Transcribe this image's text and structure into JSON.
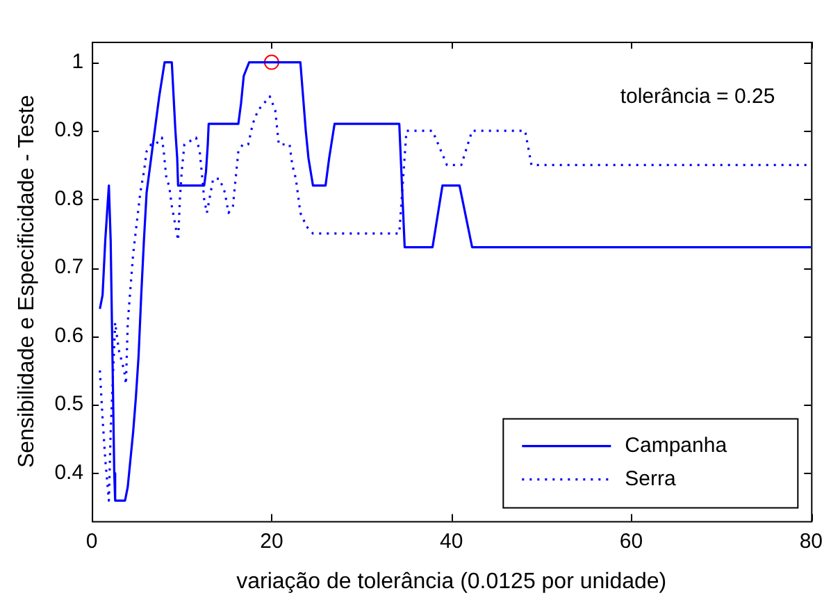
{
  "chart_data": {
    "type": "line",
    "xlabel": "variação de tolerância (0.0125 por unidade)",
    "ylabel": "Sensibilidade e Especificidade - Teste",
    "xlim": [
      0,
      80
    ],
    "xticks": [
      0,
      20,
      40,
      60,
      80
    ],
    "ylim": [
      0.33,
      1.03
    ],
    "yticks": [
      0.4,
      0.5,
      0.6,
      0.7,
      0.8,
      0.9,
      1
    ],
    "grid": false,
    "legend": "bottom right",
    "marker": "none",
    "annotations": [
      "tolerância = 0.25"
    ],
    "series": [
      {
        "name": "Campanha",
        "color": "#0000ff",
        "line_style": "solid",
        "x": [
          0.9,
          1.2,
          1.5,
          1.9,
          2.1,
          2.3,
          2.5,
          2.6,
          3.7,
          4.0,
          4.3,
          4.6,
          4.9,
          5.2,
          5.5,
          5.8,
          6.1,
          6.3,
          6.6,
          7.0,
          7.5,
          8.1,
          8.9,
          9.1,
          9.3,
          9.5,
          9.6,
          12.5,
          12.7,
          12.9,
          13.0,
          16.3,
          16.6,
          16.9,
          17.5,
          23.2,
          23.5,
          23.8,
          24.1,
          24.6,
          26.0,
          26.4,
          27.0,
          34.2,
          34.8,
          37.9,
          39.0,
          40.9,
          42.3,
          80
        ],
        "values": [
          0.64,
          0.66,
          0.74,
          0.82,
          0.74,
          0.57,
          0.4,
          0.36,
          0.36,
          0.38,
          0.42,
          0.46,
          0.51,
          0.57,
          0.66,
          0.74,
          0.81,
          0.83,
          0.86,
          0.9,
          0.95,
          1,
          1,
          0.95,
          0.9,
          0.86,
          0.82,
          0.82,
          0.84,
          0.88,
          0.91,
          0.91,
          0.94,
          0.98,
          1,
          1,
          0.95,
          0.9,
          0.86,
          0.82,
          0.82,
          0.86,
          0.91,
          0.91,
          0.73,
          0.73,
          0.82,
          0.82,
          0.73,
          0.73
        ]
      },
      {
        "name": "Serra",
        "color": "#0000ff",
        "line_style": "dotted",
        "x": [
          0.9,
          1.2,
          1.5,
          1.9,
          2.1,
          2.6,
          3.0,
          3.6,
          3.8,
          4.0,
          4.3,
          4.6,
          5.4,
          5.8,
          6.1,
          6.6,
          7.1,
          7.8,
          8.0,
          8.3,
          8.6,
          8.9,
          9.6,
          9.8,
          10.0,
          10.3,
          11.6,
          12.0,
          12.3,
          12.5,
          12.8,
          13.5,
          14.2,
          14.8,
          15.2,
          15.7,
          16.0,
          16.3,
          16.8,
          17.4,
          17.9,
          18.5,
          19.8,
          20.4,
          20.8,
          22.0,
          22.3,
          22.7,
          23.2,
          23.9,
          24.6,
          25.8,
          34.2,
          35.0,
          37.9,
          39.5,
          41.1,
          42.3,
          48.2,
          48.9,
          80
        ],
        "values": [
          0.55,
          0.48,
          0.42,
          0.36,
          0.46,
          0.62,
          0.58,
          0.55,
          0.53,
          0.62,
          0.67,
          0.72,
          0.81,
          0.84,
          0.87,
          0.88,
          0.88,
          0.89,
          0.87,
          0.83,
          0.82,
          0.79,
          0.74,
          0.8,
          0.84,
          0.88,
          0.89,
          0.87,
          0.83,
          0.8,
          0.78,
          0.83,
          0.83,
          0.81,
          0.78,
          0.79,
          0.83,
          0.87,
          0.88,
          0.88,
          0.91,
          0.93,
          0.95,
          0.93,
          0.88,
          0.88,
          0.85,
          0.83,
          0.78,
          0.76,
          0.75,
          0.75,
          0.75,
          0.9,
          0.9,
          0.85,
          0.85,
          0.9,
          0.9,
          0.85,
          0.85
        ]
      },
      {
        "type": "scatter",
        "color": "#ff0000",
        "marker": "circle",
        "x": [
          20
        ],
        "values": [
          1
        ]
      }
    ]
  }
}
